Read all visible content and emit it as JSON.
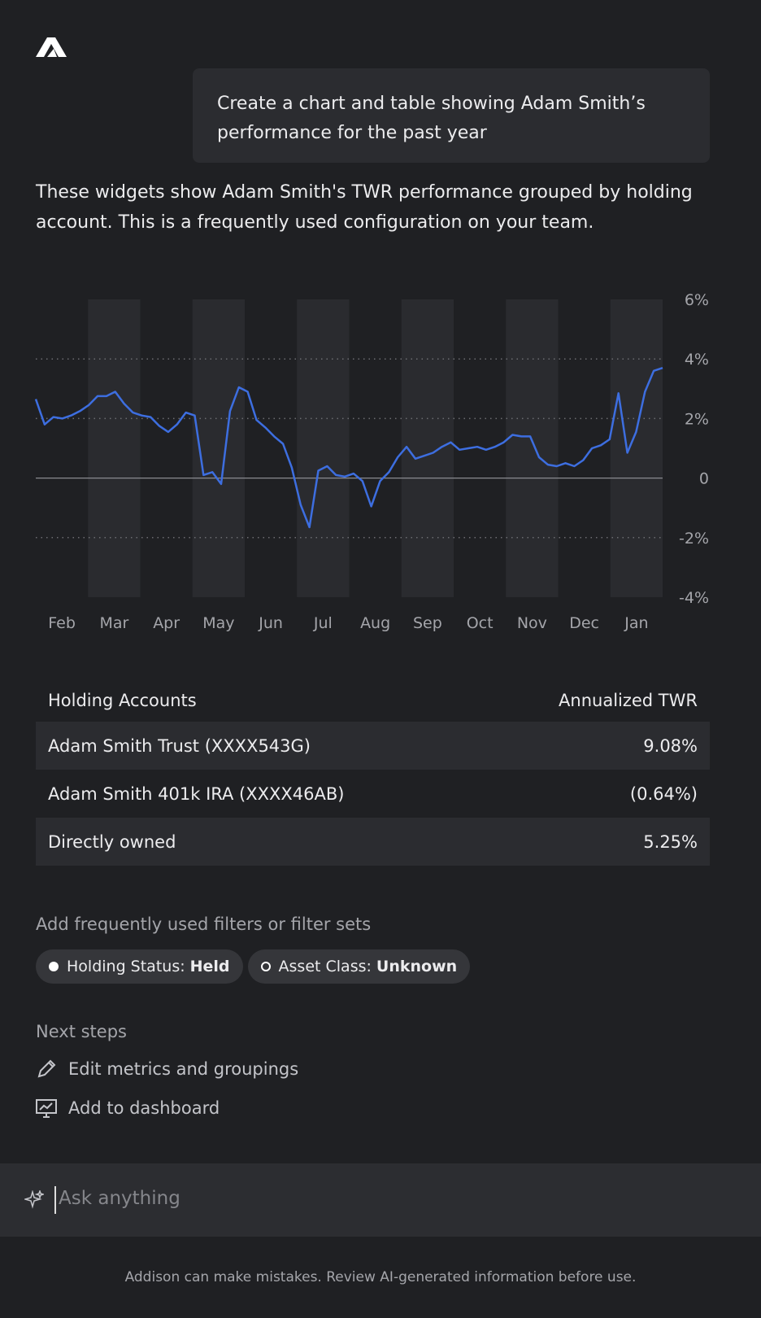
{
  "prompt": "Create a chart and table showing Adam Smith’s performance for the past year",
  "response": "These widgets show Adam Smith's TWR performance grouped by holding account. This is a frequently used configuration on your team.",
  "chart_data": {
    "type": "line",
    "categories": [
      null,
      null,
      null,
      "Feb",
      null,
      null,
      null,
      null,
      null,
      "Mar",
      null,
      null,
      null,
      null,
      null,
      "Apr",
      null,
      null,
      null,
      null,
      null,
      "May",
      null,
      null,
      null,
      null,
      null,
      "Jun",
      null,
      null,
      null,
      null,
      null,
      "Jul",
      null,
      null,
      null,
      null,
      null,
      "Aug",
      null,
      null,
      null,
      null,
      null,
      "Sep",
      null,
      null,
      null,
      null,
      null,
      "Oct",
      null,
      null,
      null,
      null,
      null,
      "Nov",
      null,
      null,
      null,
      null,
      null,
      "Dec",
      null,
      null,
      null,
      null,
      null,
      "Jan",
      null,
      null
    ],
    "series": [
      {
        "name": "TWR",
        "color": "#3d6ee0",
        "values": [
          2.65,
          1.8,
          2.05,
          2.0,
          2.1,
          2.25,
          2.45,
          2.75,
          2.75,
          2.9,
          2.5,
          2.2,
          2.1,
          2.05,
          1.75,
          1.55,
          1.8,
          2.2,
          2.1,
          0.1,
          0.2,
          -0.2,
          2.25,
          3.05,
          2.9,
          1.95,
          1.7,
          1.4,
          1.15,
          0.35,
          -0.9,
          -1.65,
          0.25,
          0.4,
          0.1,
          0.05,
          0.15,
          -0.1,
          -0.95,
          -0.1,
          0.2,
          0.7,
          1.05,
          0.65,
          0.75,
          0.85,
          1.05,
          1.2,
          0.95,
          1.0,
          1.05,
          0.95,
          1.05,
          1.2,
          1.45,
          1.4,
          1.4,
          0.7,
          0.45,
          0.4,
          0.5,
          0.4,
          0.6,
          1.0,
          1.1,
          1.3,
          2.85,
          0.85,
          1.55,
          2.9,
          3.6,
          3.7
        ]
      }
    ],
    "ylim": [
      -4,
      6
    ],
    "yticks": [
      {
        "value": 6,
        "label": "6%"
      },
      {
        "value": 4,
        "label": "4%"
      },
      {
        "value": 2,
        "label": "2%"
      },
      0,
      {
        "value": -2,
        "label": "-2%"
      },
      {
        "value": -4,
        "label": "-4%"
      }
    ],
    "grid": true
  },
  "table": {
    "header": [
      "Holding Accounts",
      "Annualized TWR"
    ],
    "rows": [
      [
        "Adam Smith Trust (XXXX543G)",
        "9.08%"
      ],
      [
        "Adam Smith 401k IRA (XXXX46AB)",
        "(0.64%)"
      ],
      [
        "Directly owned",
        "5.25%"
      ]
    ]
  },
  "filters": {
    "title": "Add frequently used filters or filter sets",
    "chips": [
      {
        "label": "Holding Status:",
        "value": "Held"
      },
      {
        "label": "Asset Class:",
        "value": "Unknown"
      }
    ]
  },
  "next_steps": {
    "title": "Next steps",
    "items": [
      "Edit metrics and groupings",
      "Add to dashboard"
    ]
  },
  "input": {
    "placeholder": "Ask anything"
  },
  "footer": "Addison can make mistakes. Review AI-generated information before use."
}
